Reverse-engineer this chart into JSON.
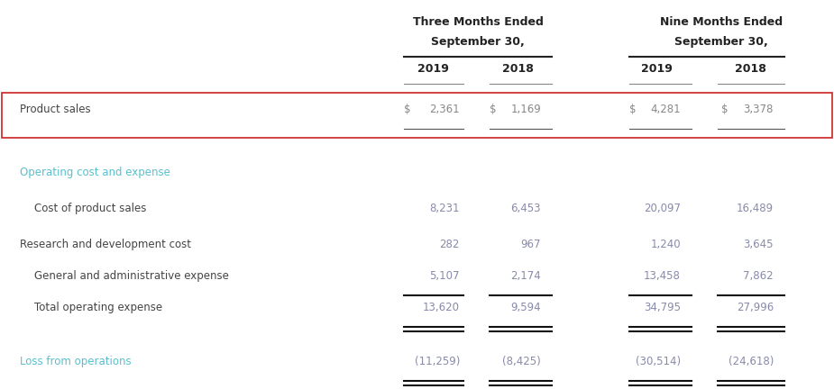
{
  "bg_color": "#ffffff",
  "header1_left": "Three Months Ended",
  "header1_right": "Nine Months Ended",
  "header2": "September 30,",
  "col_years": [
    "2019",
    "2018",
    "2019",
    "2018"
  ],
  "teal": "#5bbfcc",
  "dark": "#444444",
  "red_border": "#cc2222",
  "rows": [
    {
      "label": "Product sales",
      "values": [
        "2,361",
        "1,169",
        "4,281",
        "3,378"
      ],
      "dollar_signs": true,
      "label_color": "#444444",
      "value_color": "#888888",
      "box": true,
      "line_below_values": true,
      "line_below_type": "single_thin",
      "indent": false
    },
    {
      "label": "Operating cost and expense",
      "values": [],
      "dollar_signs": false,
      "label_color": "#5bbfcc",
      "value_color": "#888888",
      "box": false,
      "section_header": true,
      "indent": false
    },
    {
      "label": "Cost of product sales",
      "values": [
        "8,231",
        "6,453",
        "20,097",
        "16,489"
      ],
      "dollar_signs": false,
      "label_color": "#444444",
      "value_color": "#888aaa",
      "box": false,
      "indent": true
    },
    {
      "label": "Research and development cost",
      "values": [
        "282",
        "967",
        "1,240",
        "3,645"
      ],
      "dollar_signs": false,
      "label_color": "#444444",
      "value_color": "#888aaa",
      "box": false,
      "indent": false
    },
    {
      "label": "General and administrative expense",
      "values": [
        "5,107",
        "2,174",
        "13,458",
        "7,862"
      ],
      "dollar_signs": false,
      "label_color": "#444444",
      "value_color": "#888aaa",
      "box": false,
      "indent": true,
      "line_below_values": true,
      "line_below_type": "single_bold"
    },
    {
      "label": "Total operating expense",
      "values": [
        "13,620",
        "9,594",
        "34,795",
        "27,996"
      ],
      "dollar_signs": false,
      "label_color": "#444444",
      "value_color": "#888aaa",
      "box": false,
      "indent": true,
      "line_below_values": true,
      "line_below_type": "double_bold"
    },
    {
      "label": "Loss from operations",
      "values": [
        "(11,259)",
        "(8,425)",
        "(30,514)",
        "(24,618)"
      ],
      "dollar_signs": false,
      "label_color": "#5bbfcc",
      "value_color": "#888aaa",
      "box": false,
      "indent": false,
      "line_below_values": true,
      "line_below_type": "double_bold"
    }
  ],
  "font_size": 8.5,
  "header_font_size": 9.0
}
